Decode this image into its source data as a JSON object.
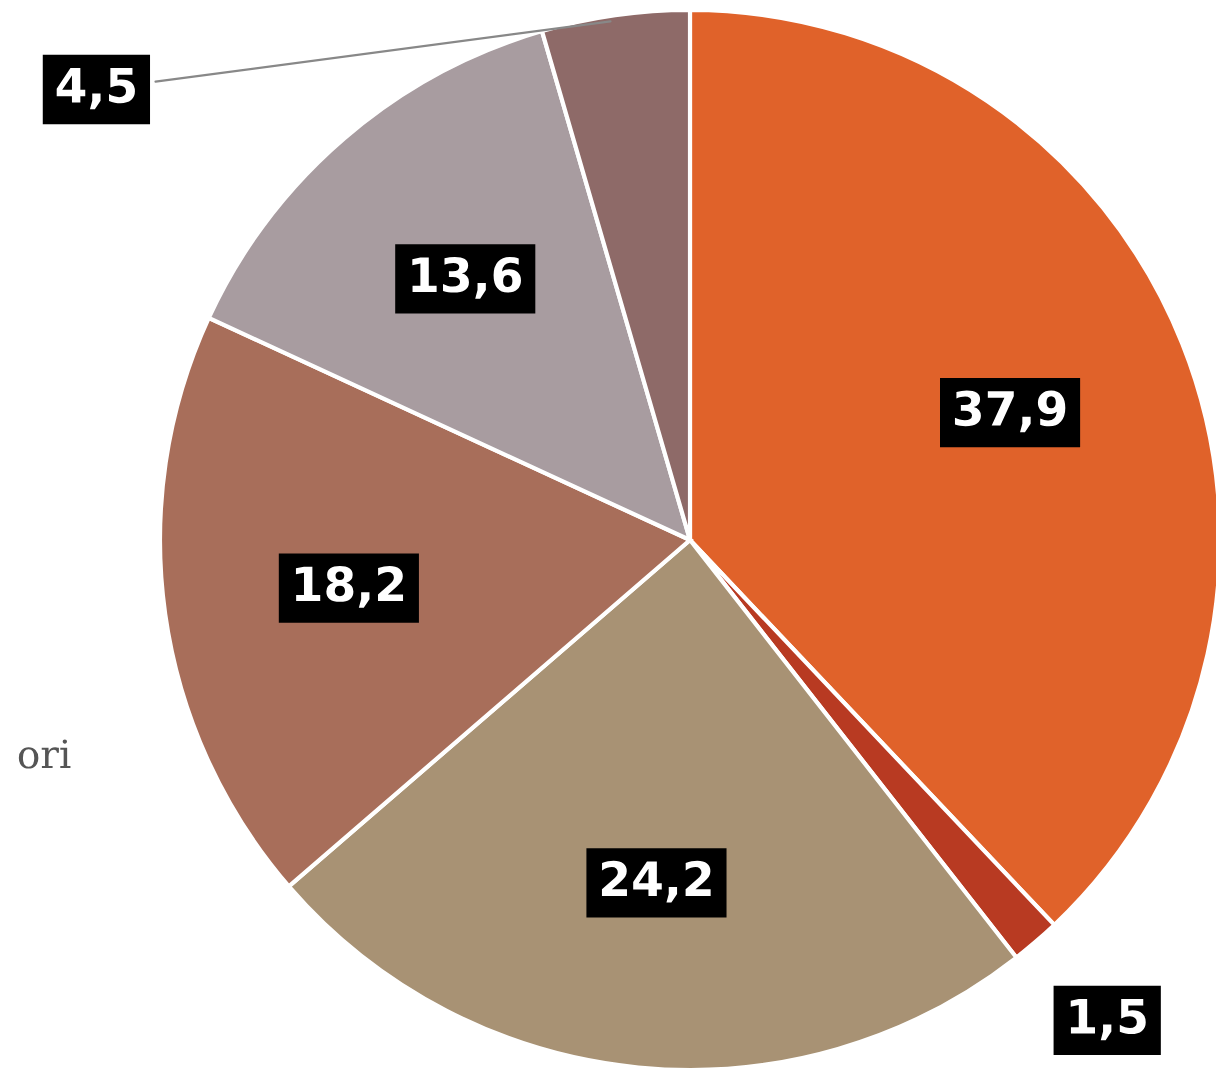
{
  "chart_data": {
    "type": "pie",
    "categories": [
      null,
      null,
      null,
      null,
      null,
      null
    ],
    "values": [
      37.9,
      1.5,
      24.2,
      18.2,
      13.6,
      4.5
    ],
    "value_labels": [
      "37,9",
      "1,5",
      "24,2",
      "18,2",
      "13,6",
      "4,5"
    ],
    "colors": [
      "#e0622a",
      "#b83a22",
      "#a89274",
      "#a86e5a",
      "#a89ca0",
      "#8e6a68"
    ],
    "annotations": [
      "ori"
    ]
  }
}
